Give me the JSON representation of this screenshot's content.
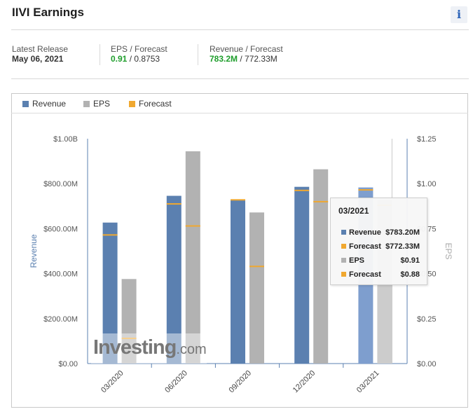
{
  "header": {
    "title": "IIVI Earnings",
    "info_label": "i"
  },
  "stats": {
    "latest_release_label": "Latest Release",
    "latest_release_value": "May 06, 2021",
    "eps_label": "EPS / Forecast",
    "eps_actual": "0.91",
    "eps_forecast": " / 0.8753",
    "revenue_label": "Revenue / Forecast",
    "revenue_actual": "783.2M",
    "revenue_forecast": " / 772.33M"
  },
  "colors": {
    "revenue": "#5b80b0",
    "eps": "#b2b2b2",
    "forecast": "#f0a830",
    "positive": "#1f9e2c"
  },
  "tooltip": {
    "date": "03/2021",
    "rows": [
      {
        "label": "Revenue",
        "value": "$783.20M",
        "color": "#5b80b0"
      },
      {
        "label": "Forecast",
        "value": "$772.33M",
        "color": "#f0a830"
      },
      {
        "label": "EPS",
        "value": "$0.91",
        "color": "#b2b2b2"
      },
      {
        "label": "Forecast",
        "value": "$0.88",
        "color": "#f0a830"
      }
    ]
  },
  "watermark": {
    "brand": "Investing",
    "domain": ".com"
  },
  "chart_data": {
    "type": "bar",
    "categories": [
      "03/2020",
      "06/2020",
      "09/2020",
      "12/2020",
      "03/2021"
    ],
    "legend": [
      "Revenue",
      "EPS",
      "Forecast"
    ],
    "series": [
      {
        "name": "Revenue",
        "axis": "left",
        "values": [
          627,
          746,
          728,
          786,
          783.2
        ]
      },
      {
        "name": "Revenue Forecast",
        "axis": "left",
        "values": [
          572,
          710,
          728,
          770,
          772.33
        ]
      },
      {
        "name": "EPS",
        "axis": "right",
        "values": [
          0.47,
          1.18,
          0.84,
          1.08,
          0.91
        ]
      },
      {
        "name": "EPS Forecast",
        "axis": "right",
        "values": [
          0.14,
          0.765,
          0.54,
          0.9,
          0.88
        ]
      }
    ],
    "left_axis": {
      "label": "Revenue",
      "range": [
        0,
        1000
      ],
      "ticks": [
        "$0.00",
        "$200.00M",
        "$400.00M",
        "$600.00M",
        "$800.00M",
        "$1.00B"
      ]
    },
    "right_axis": {
      "label": "EPS",
      "range": [
        0,
        1.25
      ],
      "ticks": [
        "$0.00",
        "$0.25",
        "$0.50",
        "$0.75",
        "$1.00",
        "$1.25"
      ]
    },
    "highlighted_category": "03/2021"
  }
}
